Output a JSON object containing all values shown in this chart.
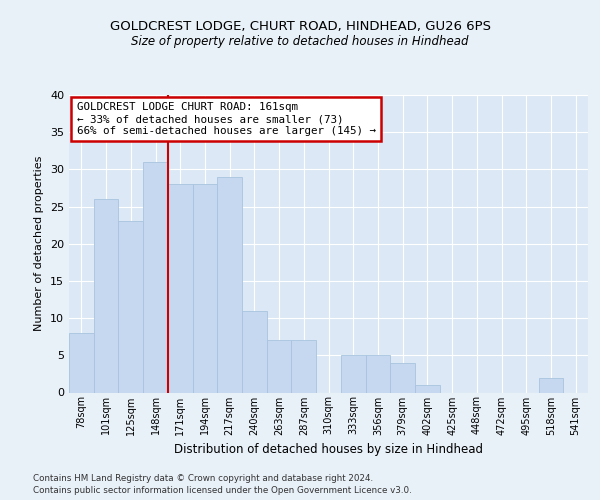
{
  "title1": "GOLDCREST LODGE, CHURT ROAD, HINDHEAD, GU26 6PS",
  "title2": "Size of property relative to detached houses in Hindhead",
  "xlabel": "Distribution of detached houses by size in Hindhead",
  "ylabel": "Number of detached properties",
  "categories": [
    "78sqm",
    "101sqm",
    "125sqm",
    "148sqm",
    "171sqm",
    "194sqm",
    "217sqm",
    "240sqm",
    "263sqm",
    "287sqm",
    "310sqm",
    "333sqm",
    "356sqm",
    "379sqm",
    "402sqm",
    "425sqm",
    "448sqm",
    "472sqm",
    "495sqm",
    "518sqm",
    "541sqm"
  ],
  "values": [
    8,
    26,
    23,
    31,
    28,
    28,
    29,
    11,
    7,
    7,
    0,
    5,
    5,
    4,
    1,
    0,
    0,
    0,
    0,
    2,
    0
  ],
  "bar_color": "#c5d8f0",
  "bar_edge_color": "#a8c4e0",
  "vline_index": 3,
  "vline_color": "#cc0000",
  "annotation_text": "GOLDCREST LODGE CHURT ROAD: 161sqm\n← 33% of detached houses are smaller (73)\n66% of semi-detached houses are larger (145) →",
  "annotation_box_edge_color": "#cc0000",
  "ylim": [
    0,
    40
  ],
  "yticks": [
    0,
    5,
    10,
    15,
    20,
    25,
    30,
    35,
    40
  ],
  "footer1": "Contains HM Land Registry data © Crown copyright and database right 2024.",
  "footer2": "Contains public sector information licensed under the Open Government Licence v3.0.",
  "bg_color": "#dce8f5",
  "fig_color": "#e8f0f8"
}
